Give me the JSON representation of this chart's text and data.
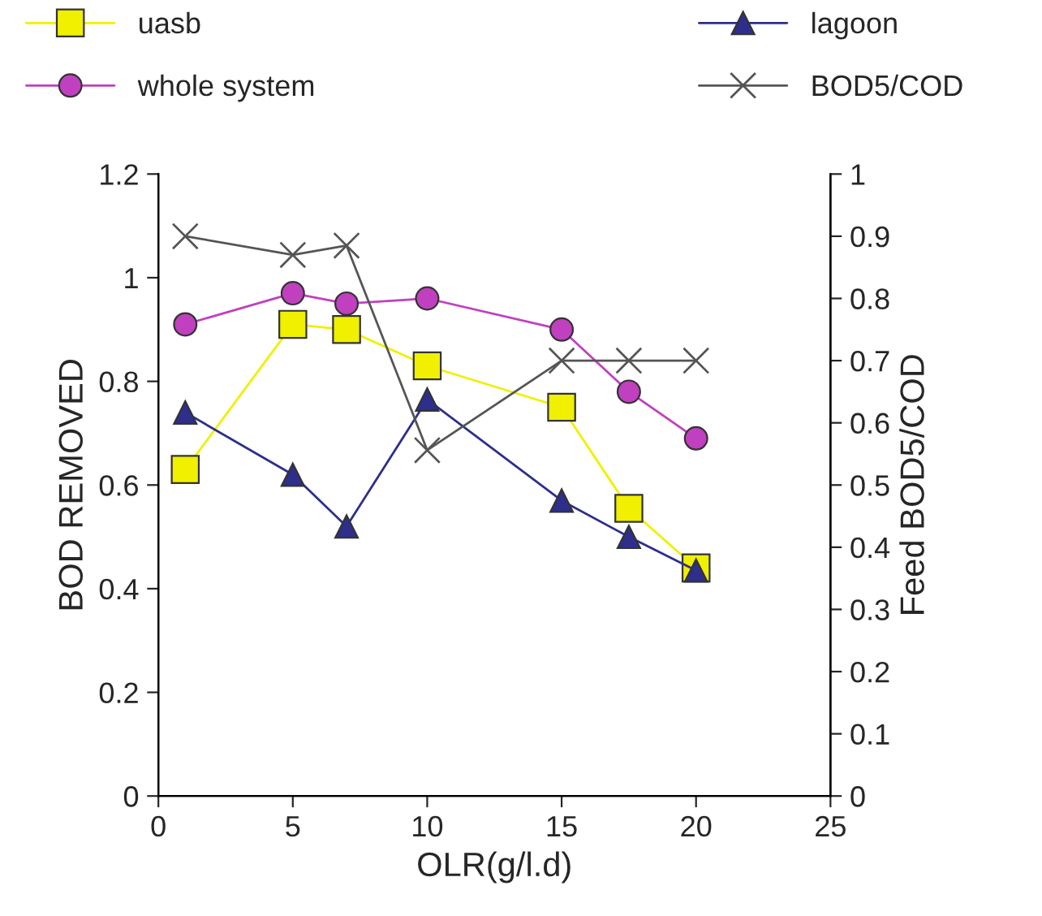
{
  "chart_data": {
    "type": "line",
    "xlabel": "OLR(g/l.d)",
    "ylabel": "BOD REMOVED",
    "y2label": "Feed BOD5/COD",
    "x": [
      1,
      5,
      7,
      10,
      15,
      17.5,
      20
    ],
    "xlim": [
      0,
      25
    ],
    "xticks": [
      0,
      5,
      10,
      15,
      20,
      25
    ],
    "ylim": [
      0,
      1.2
    ],
    "yticks": [
      0,
      0.2,
      0.4,
      0.6,
      0.8,
      1,
      1.2
    ],
    "y2lim": [
      0,
      1
    ],
    "y2ticks": [
      0,
      0.1,
      0.2,
      0.3,
      0.4,
      0.5,
      0.6,
      0.7,
      0.8,
      0.9,
      1
    ],
    "legend": "top",
    "grid": false,
    "series": [
      {
        "name": "uasb",
        "color": "#f0f000",
        "marker": "square",
        "values": [
          0.63,
          0.91,
          0.9,
          0.83,
          0.75,
          0.555,
          0.44
        ]
      },
      {
        "name": "lagoon",
        "color": "#2e2e8c",
        "marker": "triangle",
        "values": [
          0.74,
          0.62,
          0.52,
          0.765,
          0.57,
          0.5,
          0.435
        ]
      },
      {
        "name": "whole system",
        "color": "#c040c0",
        "marker": "circle",
        "values": [
          0.91,
          0.97,
          0.95,
          0.96,
          0.9,
          0.78,
          0.69
        ]
      },
      {
        "name": "BOD5/COD",
        "color": "#555555",
        "marker": "cross",
        "axis": "y2",
        "values": [
          0.9,
          0.87,
          0.885,
          0.556,
          0.7,
          0.7,
          0.7
        ]
      }
    ]
  }
}
